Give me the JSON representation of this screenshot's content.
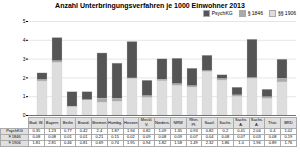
{
  "chart_data": {
    "type": "bar",
    "stacked": true,
    "title": "Anzahl Unterbringungsverfahren je 1000 Einwohner 2013",
    "categories": [
      "Bad. W.",
      "Bayern",
      "Berlin",
      "Brand.",
      "Bremen",
      "Hambg.",
      "Hessen",
      "Meckl. V.",
      "Nieders.",
      "NRW",
      "Rhin. Pf.",
      "Saarl.",
      "Sachs.",
      "Sachs. A.",
      "Sachs. A.",
      "Thür.",
      "BRD"
    ],
    "series": [
      {
        "name": "PsychKG",
        "color": "#555555",
        "values": [
          0.35,
          1.23,
          0.77,
          0.42,
          2.4,
          1.87,
          1.94,
          0.82,
          1.09,
          1.35,
          0.93,
          0.82,
          0.2,
          0.41,
          2.04,
          0.4,
          1.02
        ]
      },
      {
        "name": "§ 1846",
        "color": "#aaaaaa",
        "values": [
          0.08,
          0.08,
          0.01,
          0.01,
          0.21,
          0.15,
          0.02,
          0.09,
          0.08,
          0.09,
          0.07,
          0.04,
          0.08,
          0.07,
          0.03,
          0.08,
          0.19
        ]
      },
      {
        "name": "§§ 1906",
        "color": "#dddddd",
        "values": [
          1.81,
          2.81,
          0.46,
          0.81,
          0.69,
          0.74,
          1.95,
          0.94,
          1.82,
          1.58,
          1.49,
          2.32,
          1.86,
          1.0,
          1.96,
          0.89,
          1.76
        ],
        "value_labels": [
          "1.81",
          "2.81",
          "0.46",
          "0.81",
          "0.69",
          "0.74",
          "1.95",
          "0.94",
          "1.82",
          "1.58",
          "1.49",
          "2.32",
          "1.86",
          "1.0",
          "1.96",
          "0.89",
          "1.76"
        ]
      }
    ],
    "table_row_labels": [
      "PsychKG",
      "§ 1846",
      "§ 1906"
    ],
    "data_labels": true,
    "ylim": [
      0,
      5
    ],
    "yticks": [
      0,
      1,
      2,
      3,
      4,
      5
    ],
    "grid": true,
    "legend": "upper right",
    "tick_labels": "y"
  }
}
